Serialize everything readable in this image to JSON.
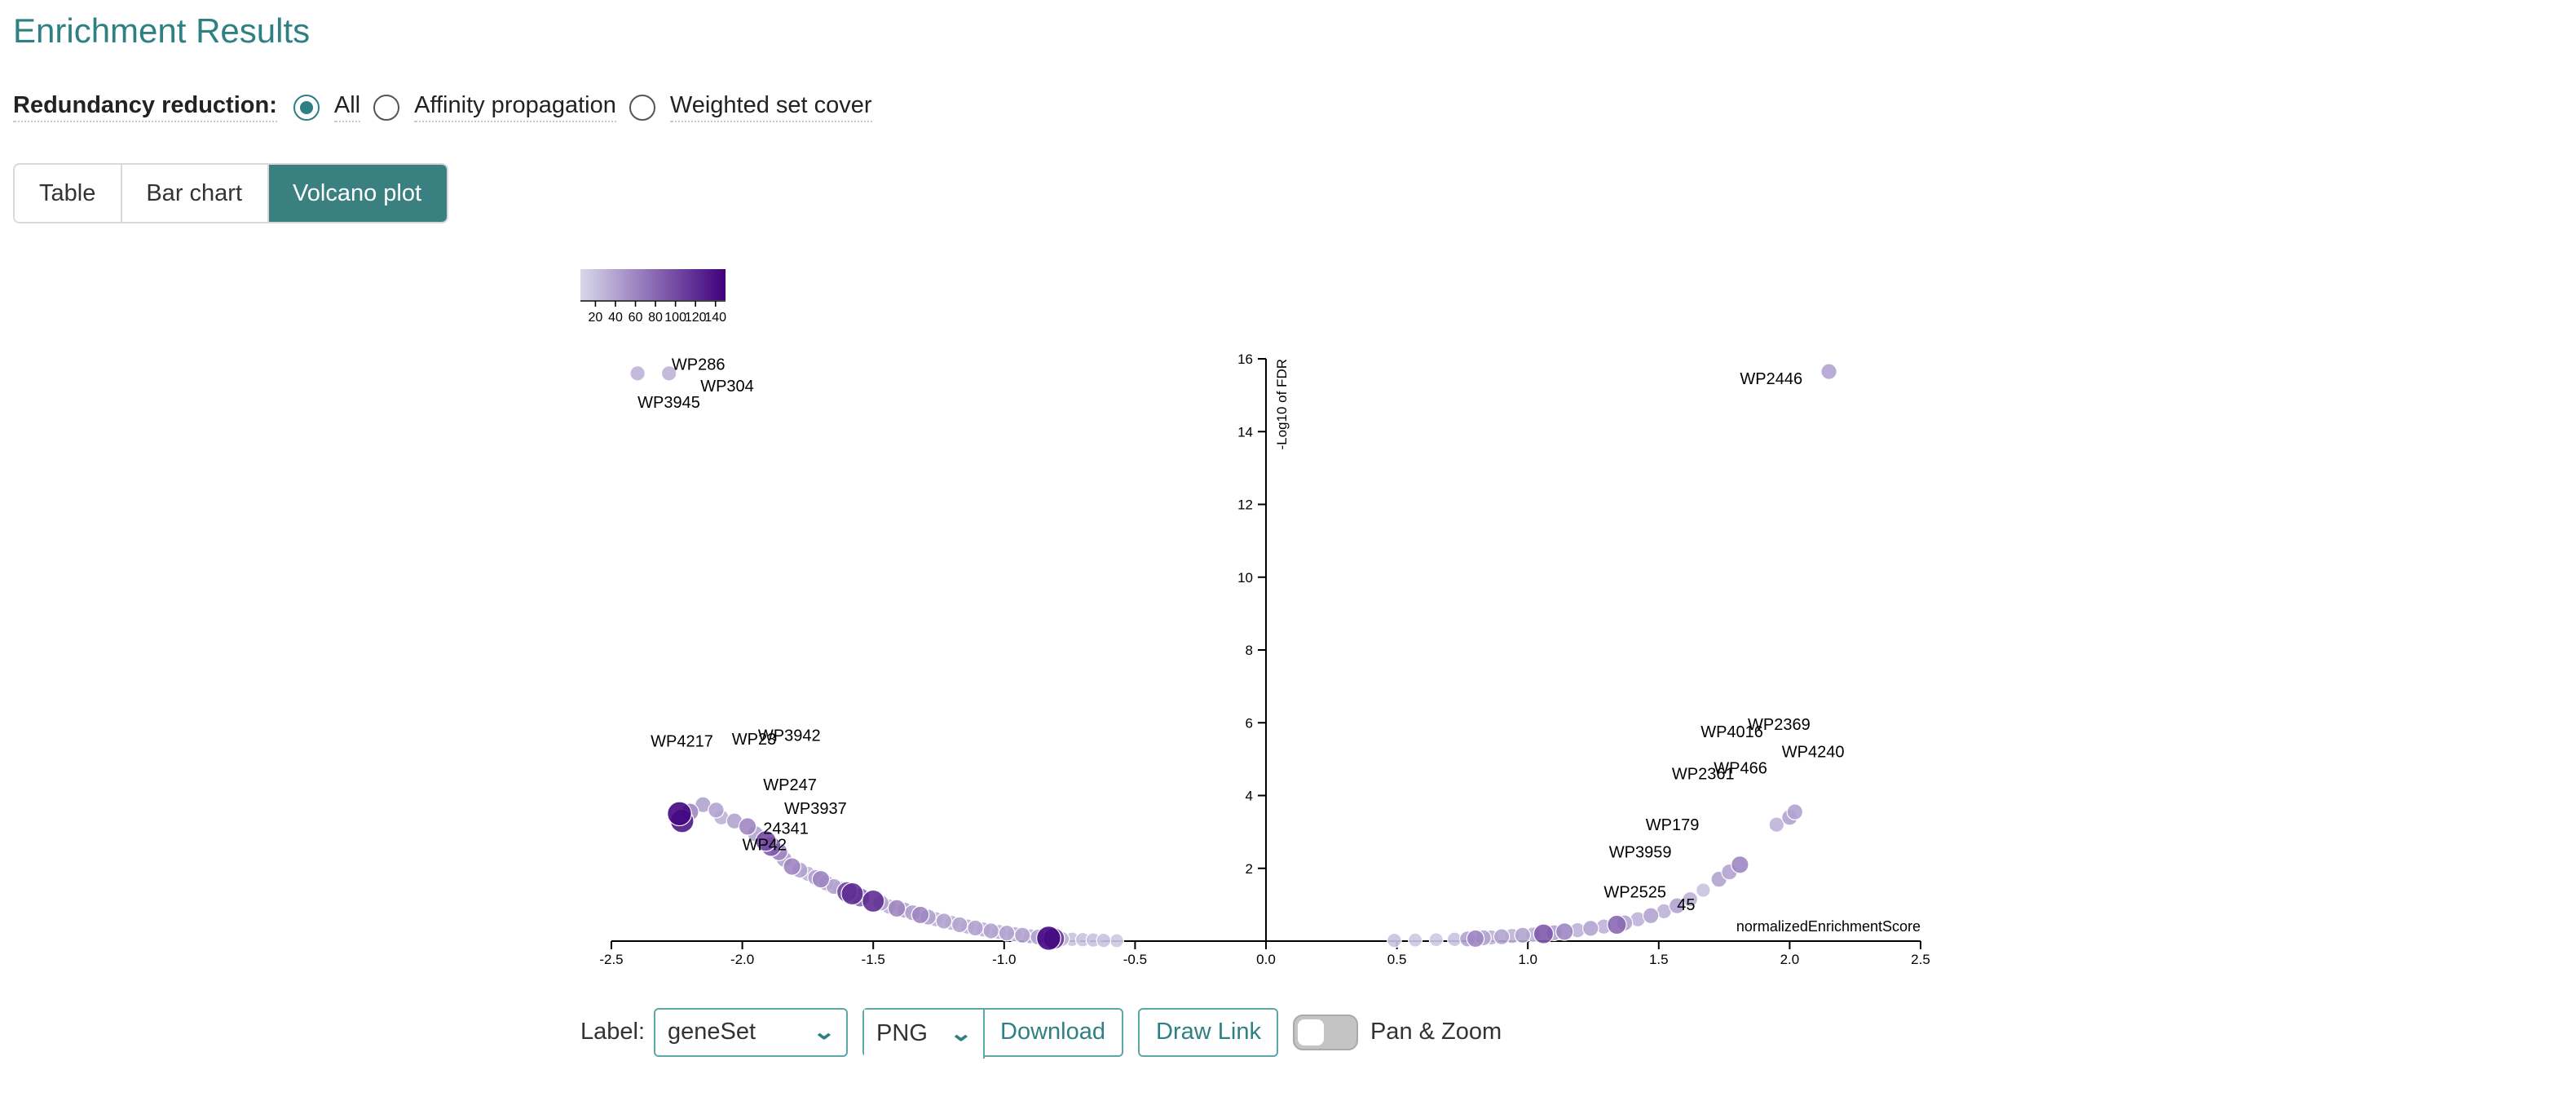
{
  "page": {
    "title": "Enrichment Results"
  },
  "redundancy": {
    "label": "Redundancy reduction:",
    "options": [
      "All",
      "Affinity propagation",
      "Weighted set cover"
    ],
    "selected": "All"
  },
  "tabs": [
    {
      "label": "Table",
      "active": false
    },
    {
      "label": "Bar chart",
      "active": false
    },
    {
      "label": "Volcano plot",
      "active": true
    }
  ],
  "colors": {
    "accent": "#2e8082",
    "tab_active": "#3b8081",
    "scale_low": "#d8d8eb",
    "scale_high": "#3f007d"
  },
  "controls": {
    "label_text": "Label:",
    "label_value": "geneSet",
    "format_value": "PNG",
    "download_label": "Download",
    "draw_link_label": "Draw Link",
    "pan_zoom_label": "Pan & Zoom",
    "pan_zoom_on": false,
    "chevron_icon": "chevron-down-icon"
  },
  "chart_data": {
    "type": "scatter",
    "xlabel": "normalizedEnrichmentScore",
    "ylabel": "-Log10 of FDR",
    "xlim": [
      -2.5,
      2.5
    ],
    "ylim": [
      0,
      16
    ],
    "xticks": [
      -2.5,
      -2.0,
      -1.5,
      -1.0,
      -0.5,
      0.0,
      0.5,
      1.0,
      1.5,
      2.0,
      2.5
    ],
    "yticks": [
      2,
      4,
      6,
      8,
      10,
      12,
      14,
      16
    ],
    "grid": false,
    "colorbar": {
      "ticks": [
        20,
        40,
        60,
        80,
        100,
        120,
        140
      ],
      "range": [
        5,
        150
      ]
    },
    "labels": [
      {
        "text": "WP286",
        "x": -2.27,
        "y": 15.7
      },
      {
        "text": "WP304",
        "x": -2.16,
        "y": 15.1
      },
      {
        "text": "WP3945",
        "x": -2.4,
        "y": 14.65
      },
      {
        "text": "WP2446",
        "x": 1.81,
        "y": 15.3
      },
      {
        "text": "WP4217",
        "x": -2.35,
        "y": 5.35
      },
      {
        "text": "WP23",
        "x": -2.04,
        "y": 5.4
      },
      {
        "text": "WP3942",
        "x": -1.94,
        "y": 5.5
      },
      {
        "text": "WP247",
        "x": -1.92,
        "y": 4.15
      },
      {
        "text": "WP3937",
        "x": -1.84,
        "y": 3.5
      },
      {
        "text": "24341",
        "x": -1.92,
        "y": 2.95
      },
      {
        "text": "WP42",
        "x": -2.0,
        "y": 2.5
      },
      {
        "text": "WP2369",
        "x": 1.84,
        "y": 5.8
      },
      {
        "text": "WP4016",
        "x": 1.66,
        "y": 5.6
      },
      {
        "text": "WP4240",
        "x": 1.97,
        "y": 5.05
      },
      {
        "text": "WP466",
        "x": 1.71,
        "y": 4.6
      },
      {
        "text": "WP2361",
        "x": 1.55,
        "y": 4.45
      },
      {
        "text": "WP179",
        "x": 1.45,
        "y": 3.05
      },
      {
        "text": "WP3959",
        "x": 1.31,
        "y": 2.3
      },
      {
        "text": "WP2525",
        "x": 1.29,
        "y": 1.2
      },
      {
        "text": "45",
        "x": 1.57,
        "y": 0.85
      }
    ],
    "points": [
      {
        "x": -2.4,
        "y": 15.6,
        "size": 30
      },
      {
        "x": -2.28,
        "y": 15.6,
        "size": 30
      },
      {
        "x": 2.15,
        "y": 15.65,
        "size": 40
      },
      {
        "x": -2.24,
        "y": 3.5,
        "size": 145
      },
      {
        "x": -2.23,
        "y": 3.3,
        "size": 135
      },
      {
        "x": -2.2,
        "y": 3.55,
        "size": 60
      },
      {
        "x": -2.15,
        "y": 3.75,
        "size": 40
      },
      {
        "x": -2.1,
        "y": 3.6,
        "size": 40
      },
      {
        "x": -2.08,
        "y": 3.4,
        "size": 30
      },
      {
        "x": -2.03,
        "y": 3.3,
        "size": 40
      },
      {
        "x": -1.98,
        "y": 3.15,
        "size": 60
      },
      {
        "x": -1.95,
        "y": 2.95,
        "size": 40
      },
      {
        "x": -1.91,
        "y": 2.75,
        "size": 100
      },
      {
        "x": -1.89,
        "y": 2.6,
        "size": 90
      },
      {
        "x": -1.86,
        "y": 2.45,
        "size": 60
      },
      {
        "x": -1.84,
        "y": 2.25,
        "size": 40
      },
      {
        "x": -1.81,
        "y": 2.05,
        "size": 60
      },
      {
        "x": -1.78,
        "y": 1.95,
        "size": 40
      },
      {
        "x": -1.75,
        "y": 1.85,
        "size": 30
      },
      {
        "x": -1.72,
        "y": 1.75,
        "size": 40
      },
      {
        "x": -1.7,
        "y": 1.7,
        "size": 60
      },
      {
        "x": -1.68,
        "y": 1.6,
        "size": 40
      },
      {
        "x": -1.65,
        "y": 1.5,
        "size": 40
      },
      {
        "x": -1.63,
        "y": 1.45,
        "size": 30
      },
      {
        "x": -1.6,
        "y": 1.35,
        "size": 100
      },
      {
        "x": -1.58,
        "y": 1.3,
        "size": 120
      },
      {
        "x": -1.55,
        "y": 1.2,
        "size": 80
      },
      {
        "x": -1.5,
        "y": 1.1,
        "size": 120
      },
      {
        "x": -1.47,
        "y": 1.05,
        "size": 40
      },
      {
        "x": -1.44,
        "y": 0.95,
        "size": 30
      },
      {
        "x": -1.41,
        "y": 0.9,
        "size": 60
      },
      {
        "x": -1.38,
        "y": 0.85,
        "size": 40
      },
      {
        "x": -1.35,
        "y": 0.78,
        "size": 40
      },
      {
        "x": -1.32,
        "y": 0.72,
        "size": 60
      },
      {
        "x": -1.29,
        "y": 0.66,
        "size": 40
      },
      {
        "x": -1.26,
        "y": 0.6,
        "size": 30
      },
      {
        "x": -1.23,
        "y": 0.55,
        "size": 40
      },
      {
        "x": -1.2,
        "y": 0.5,
        "size": 30
      },
      {
        "x": -1.17,
        "y": 0.45,
        "size": 40
      },
      {
        "x": -1.14,
        "y": 0.4,
        "size": 30
      },
      {
        "x": -1.11,
        "y": 0.36,
        "size": 40
      },
      {
        "x": -1.08,
        "y": 0.32,
        "size": 30
      },
      {
        "x": -1.05,
        "y": 0.28,
        "size": 40
      },
      {
        "x": -1.02,
        "y": 0.25,
        "size": 30
      },
      {
        "x": -0.99,
        "y": 0.22,
        "size": 40
      },
      {
        "x": -0.96,
        "y": 0.19,
        "size": 30
      },
      {
        "x": -0.93,
        "y": 0.16,
        "size": 40
      },
      {
        "x": -0.9,
        "y": 0.13,
        "size": 30
      },
      {
        "x": -0.87,
        "y": 0.11,
        "size": 40
      },
      {
        "x": -0.83,
        "y": 0.08,
        "size": 145
      },
      {
        "x": -0.81,
        "y": 0.07,
        "size": 110
      },
      {
        "x": -0.78,
        "y": 0.06,
        "size": 30
      },
      {
        "x": -0.74,
        "y": 0.05,
        "size": 20
      },
      {
        "x": -0.7,
        "y": 0.04,
        "size": 20
      },
      {
        "x": -0.66,
        "y": 0.03,
        "size": 20
      },
      {
        "x": -0.62,
        "y": 0.02,
        "size": 20
      },
      {
        "x": -0.57,
        "y": 0.01,
        "size": 15
      },
      {
        "x": 0.49,
        "y": 0.02,
        "size": 20
      },
      {
        "x": 0.57,
        "y": 0.03,
        "size": 15
      },
      {
        "x": 0.65,
        "y": 0.04,
        "size": 15
      },
      {
        "x": 0.72,
        "y": 0.05,
        "size": 20
      },
      {
        "x": 0.77,
        "y": 0.06,
        "size": 40
      },
      {
        "x": 0.8,
        "y": 0.07,
        "size": 60
      },
      {
        "x": 0.83,
        "y": 0.09,
        "size": 40
      },
      {
        "x": 0.86,
        "y": 0.1,
        "size": 30
      },
      {
        "x": 0.9,
        "y": 0.12,
        "size": 40
      },
      {
        "x": 0.94,
        "y": 0.14,
        "size": 30
      },
      {
        "x": 0.98,
        "y": 0.16,
        "size": 40
      },
      {
        "x": 1.02,
        "y": 0.18,
        "size": 30
      },
      {
        "x": 1.06,
        "y": 0.2,
        "size": 90
      },
      {
        "x": 1.1,
        "y": 0.23,
        "size": 40
      },
      {
        "x": 1.14,
        "y": 0.26,
        "size": 60
      },
      {
        "x": 1.19,
        "y": 0.3,
        "size": 30
      },
      {
        "x": 1.24,
        "y": 0.35,
        "size": 40
      },
      {
        "x": 1.29,
        "y": 0.4,
        "size": 30
      },
      {
        "x": 1.34,
        "y": 0.45,
        "size": 80
      },
      {
        "x": 1.37,
        "y": 0.5,
        "size": 40
      },
      {
        "x": 1.42,
        "y": 0.6,
        "size": 30
      },
      {
        "x": 1.47,
        "y": 0.7,
        "size": 40
      },
      {
        "x": 1.52,
        "y": 0.82,
        "size": 30
      },
      {
        "x": 1.57,
        "y": 0.97,
        "size": 40
      },
      {
        "x": 1.62,
        "y": 1.15,
        "size": 30
      },
      {
        "x": 1.67,
        "y": 1.4,
        "size": 20
      },
      {
        "x": 1.73,
        "y": 1.7,
        "size": 40
      },
      {
        "x": 1.77,
        "y": 1.9,
        "size": 40
      },
      {
        "x": 1.81,
        "y": 2.1,
        "size": 60
      },
      {
        "x": 1.95,
        "y": 3.2,
        "size": 30
      },
      {
        "x": 2.0,
        "y": 3.4,
        "size": 40
      },
      {
        "x": 2.02,
        "y": 3.55,
        "size": 40
      }
    ]
  }
}
